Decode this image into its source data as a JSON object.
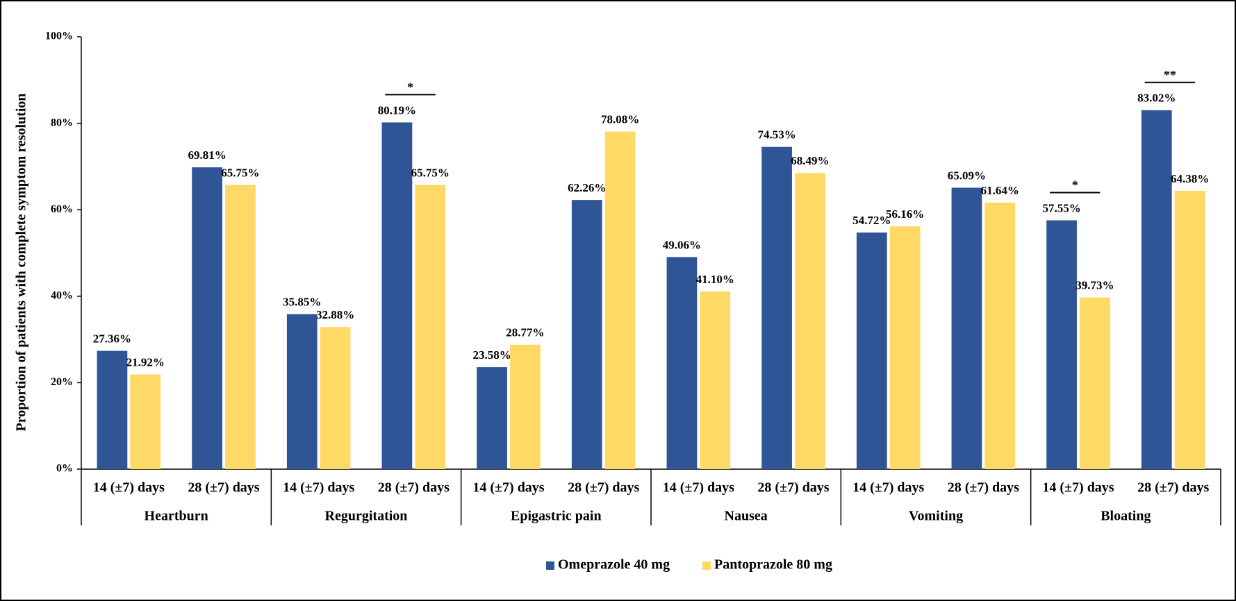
{
  "chart_data": {
    "type": "bar",
    "y_label": "Proportion of patients with complete symptom resolution",
    "categories": [
      "14 (±7) days",
      "28 (±7) days",
      "14 (±7) days",
      "28 (±7) days",
      "14 (±7) days",
      "28 (±7) days",
      "14 (±7) days",
      "28 (±7) days",
      "14 (±7) days",
      "28 (±7) days",
      "14 (±7) days",
      "28 (±7) days"
    ],
    "groups": [
      "Heartburn",
      "Regurgitation",
      "Epigastric pain",
      "Nausea",
      "Vomiting",
      "Bloating"
    ],
    "series": [
      {
        "name": "Omeprazole 40 mg",
        "color": "#2F5597",
        "values": [
          27.36,
          69.81,
          35.85,
          80.19,
          23.58,
          62.26,
          49.06,
          74.53,
          54.72,
          65.09,
          57.55,
          83.02
        ],
        "value_labels": [
          "27.36%",
          "69.81%",
          "35.85%",
          "80.19%",
          "23.58%",
          "62.26%",
          "49.06%",
          "74.53%",
          "54.72%",
          "65.09%",
          "57.55%",
          "83.02%"
        ]
      },
      {
        "name": "Pantoprazole 80 mg",
        "color": "#FFD966",
        "values": [
          21.92,
          65.75,
          32.88,
          65.75,
          28.77,
          78.08,
          41.1,
          68.49,
          56.16,
          61.64,
          39.73,
          64.38
        ],
        "value_labels": [
          "21.92%",
          "65.75%",
          "32.88%",
          "65.75%",
          "28.77%",
          "78.08%",
          "41.10%",
          "68.49%",
          "56.16%",
          "61.64%",
          "39.73%",
          "64.38%"
        ]
      }
    ],
    "significance": [
      null,
      null,
      null,
      "*",
      null,
      null,
      null,
      null,
      null,
      null,
      "*",
      "**"
    ],
    "ylim": [
      0,
      100
    ],
    "yticks": [
      {
        "value": 0,
        "label": "0%"
      },
      {
        "value": 20,
        "label": "20%"
      },
      {
        "value": 40,
        "label": "40%"
      },
      {
        "value": 60,
        "label": "60%"
      },
      {
        "value": 80,
        "label": "80%"
      },
      {
        "value": 100,
        "label": "100%"
      }
    ],
    "grid": false,
    "legend": "bottom"
  }
}
